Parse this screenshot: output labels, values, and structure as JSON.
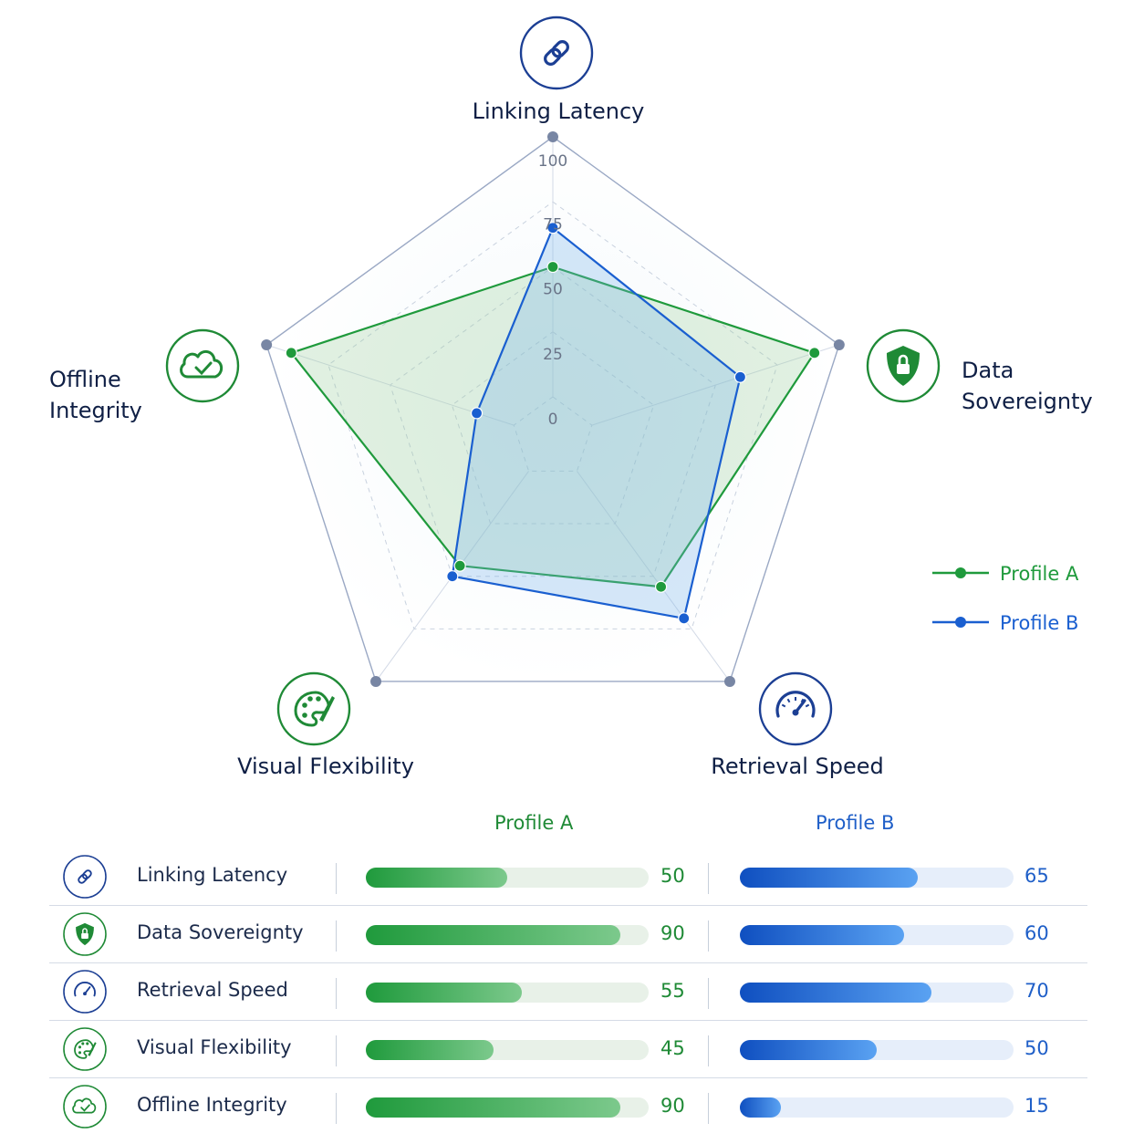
{
  "chart_data": {
    "type": "radar",
    "axes": [
      "Linking Latency",
      "Data Sovereignty",
      "Retrieval Speed",
      "Visual Flexibility",
      "Offline Integrity"
    ],
    "axis_labels": [
      [
        "Linking Latency"
      ],
      [
        "Data",
        "Sovereignty"
      ],
      [
        "Retrieval Speed"
      ],
      [
        "Visual Flexibility"
      ],
      [
        "Offline",
        "Integrity"
      ]
    ],
    "axis_icons": [
      "link-icon",
      "shield-lock-icon",
      "gauge-icon",
      "palette-icon",
      "cloud-check-icon"
    ],
    "axis_colors": [
      "#1c3f94",
      "#1f8a36",
      "#1c3f94",
      "#1f8a36",
      "#1f8a36"
    ],
    "range": [
      0,
      100
    ],
    "ticks": [
      0,
      25,
      50,
      75,
      100
    ],
    "series": [
      {
        "name": "Profile A",
        "color": "#1f9a3c",
        "values": [
          50,
          90,
          55,
          45,
          90
        ]
      },
      {
        "name": "Profile B",
        "color": "#1a5fd0",
        "values": [
          65,
          60,
          70,
          50,
          15
        ]
      }
    ],
    "legend_position": "right"
  },
  "table": {
    "header_a": "Profile A",
    "header_b": "Profile B"
  }
}
